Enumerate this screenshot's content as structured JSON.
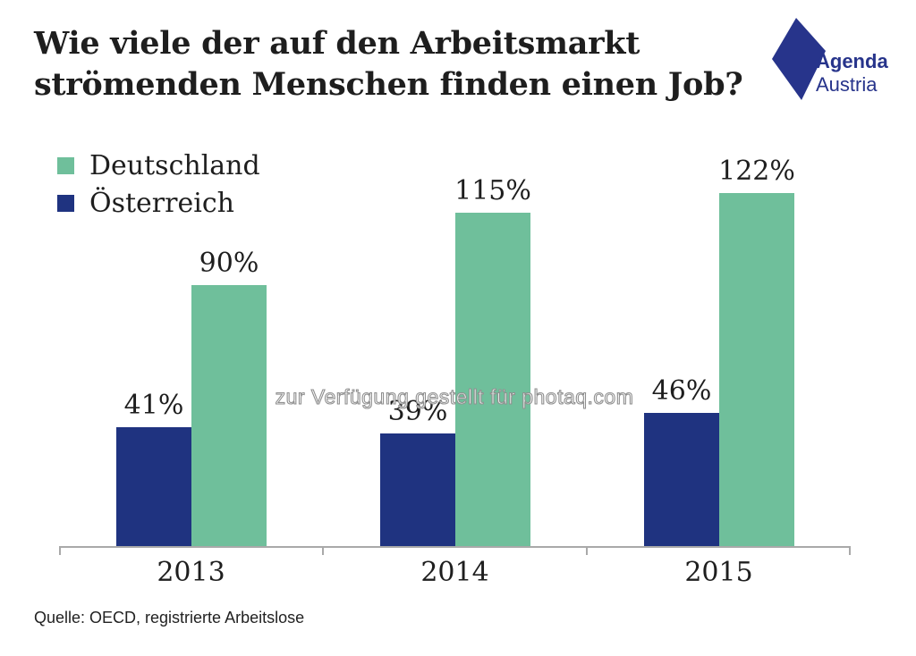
{
  "header": {
    "title_lines": [
      "Wie viele der auf den Arbeitsmarkt",
      "strömenden Menschen finden einen Job?"
    ]
  },
  "logo": {
    "line1": "Agenda",
    "line2": "Austria",
    "color": "#27348B"
  },
  "watermark": {
    "text": "zur Verfügung gestellt für photaq.com"
  },
  "footer": {
    "source": "Quelle: OECD, registrierte Arbeitslose"
  },
  "colors": {
    "deutschland_green": "#6FBF9B",
    "oesterreich_navy": "#1F3380",
    "axis_gray": "#A9A9A9",
    "text_dark": "#1E1E1E"
  },
  "chart_data": {
    "type": "bar",
    "title": "Wie viele der auf den Arbeitsmarkt strömenden Menschen finden einen Job?",
    "categories": [
      "2013",
      "2014",
      "2015"
    ],
    "series": [
      {
        "name": "Deutschland",
        "color": "#6FBF9B",
        "values": [
          90,
          115,
          122
        ],
        "labels": [
          "90%",
          "115%",
          "122%"
        ]
      },
      {
        "name": "Österreich",
        "color": "#1F3380",
        "values": [
          41,
          39,
          46
        ],
        "labels": [
          "41%",
          "39%",
          "46%"
        ]
      }
    ],
    "unit": "%",
    "ylim": [
      0,
      130
    ],
    "bar_order_left_to_right": [
      "Österreich",
      "Deutschland"
    ],
    "value_labels_shown": true,
    "grid": false,
    "legend_position": "top-left",
    "xlabel": "",
    "ylabel": ""
  }
}
